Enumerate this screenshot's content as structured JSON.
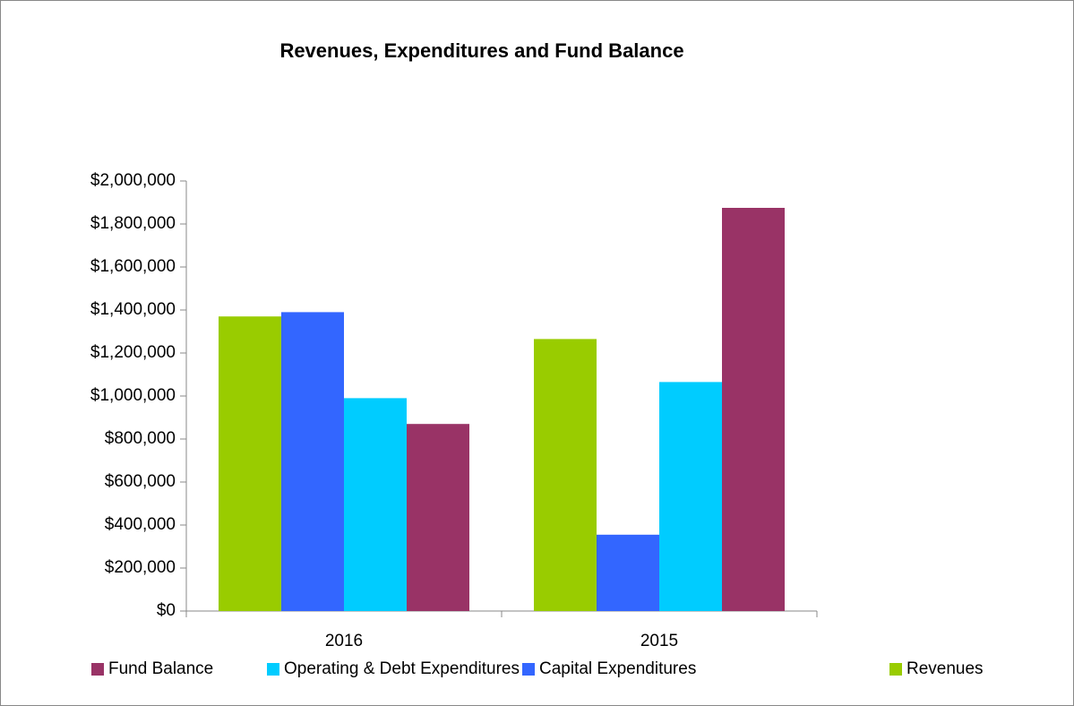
{
  "chart_data": {
    "type": "bar",
    "title": "Revenues, Expenditures and Fund Balance",
    "categories": [
      "2016",
      "2015"
    ],
    "series": [
      {
        "name": "Fund Balance",
        "color": "#993366",
        "values": [
          870000,
          1875000
        ]
      },
      {
        "name": "Operating & Debt Expenditures",
        "color": "#00ccff",
        "values": [
          990000,
          1065000
        ]
      },
      {
        "name": "Capital Expenditures",
        "color": "#3366ff",
        "values": [
          1390000,
          355000
        ]
      },
      {
        "name": "Revenues",
        "color": "#99cc00",
        "values": [
          1370000,
          1265000
        ]
      }
    ],
    "ylim": [
      0,
      2000000
    ],
    "yticks": [
      {
        "value": 0,
        "label": "$0"
      },
      {
        "value": 200000,
        "label": "$200,000"
      },
      {
        "value": 400000,
        "label": "$400,000"
      },
      {
        "value": 600000,
        "label": "$600,000"
      },
      {
        "value": 800000,
        "label": "$800,000"
      },
      {
        "value": 1000000,
        "label": "$1,000,000"
      },
      {
        "value": 1200000,
        "label": "$1,200,000"
      },
      {
        "value": 1400000,
        "label": "$1,400,000"
      },
      {
        "value": 1600000,
        "label": "$1,600,000"
      },
      {
        "value": 1800000,
        "label": "$1,800,000"
      },
      {
        "value": 2000000,
        "label": "$2,000,000"
      }
    ],
    "grid": false,
    "legend": "bottom"
  }
}
